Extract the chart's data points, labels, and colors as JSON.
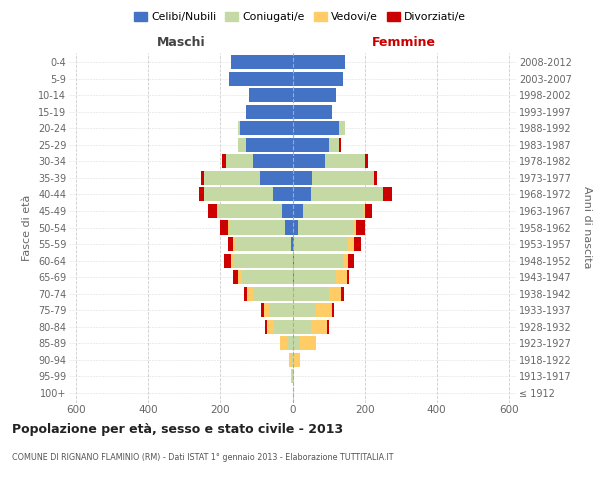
{
  "age_groups": [
    "100+",
    "95-99",
    "90-94",
    "85-89",
    "80-84",
    "75-79",
    "70-74",
    "65-69",
    "60-64",
    "55-59",
    "50-54",
    "45-49",
    "40-44",
    "35-39",
    "30-34",
    "25-29",
    "20-24",
    "15-19",
    "10-14",
    "5-9",
    "0-4"
  ],
  "birth_years": [
    "≤ 1912",
    "1913-1917",
    "1918-1922",
    "1923-1927",
    "1928-1932",
    "1933-1937",
    "1938-1942",
    "1943-1947",
    "1948-1952",
    "1953-1957",
    "1958-1962",
    "1963-1967",
    "1968-1972",
    "1973-1977",
    "1978-1982",
    "1983-1987",
    "1988-1992",
    "1993-1997",
    "1998-2002",
    "2003-2007",
    "2008-2012"
  ],
  "colors": {
    "celibi": "#4472C4",
    "coniugati": "#C5D9A4",
    "vedovi": "#FFCC66",
    "divorziati": "#CC0000"
  },
  "males": {
    "celibi": [
      0,
      0,
      0,
      0,
      0,
      0,
      0,
      0,
      0,
      5,
      20,
      30,
      55,
      90,
      110,
      130,
      145,
      130,
      120,
      175,
      170
    ],
    "coniugati": [
      0,
      2,
      5,
      15,
      50,
      65,
      110,
      140,
      165,
      155,
      155,
      180,
      190,
      155,
      75,
      20,
      5,
      0,
      0,
      0,
      0
    ],
    "vedovi": [
      0,
      2,
      5,
      20,
      20,
      15,
      15,
      10,
      5,
      5,
      5,
      0,
      0,
      0,
      0,
      0,
      0,
      0,
      0,
      0,
      0
    ],
    "divorziati": [
      0,
      0,
      0,
      0,
      5,
      8,
      10,
      15,
      20,
      15,
      20,
      25,
      15,
      10,
      10,
      0,
      0,
      0,
      0,
      0,
      0
    ]
  },
  "females": {
    "nubili": [
      0,
      0,
      0,
      0,
      0,
      0,
      0,
      5,
      5,
      5,
      15,
      30,
      50,
      55,
      90,
      100,
      130,
      110,
      120,
      140,
      145
    ],
    "coniugati": [
      0,
      2,
      5,
      20,
      50,
      65,
      100,
      115,
      135,
      150,
      155,
      165,
      200,
      170,
      110,
      30,
      15,
      0,
      0,
      0,
      0
    ],
    "vedovi": [
      1,
      3,
      15,
      45,
      45,
      45,
      35,
      30,
      15,
      15,
      5,
      5,
      0,
      0,
      0,
      0,
      0,
      0,
      0,
      0,
      0
    ],
    "divorziati": [
      0,
      0,
      0,
      0,
      5,
      5,
      8,
      8,
      15,
      20,
      25,
      20,
      25,
      10,
      10,
      5,
      0,
      0,
      0,
      0,
      0
    ]
  },
  "xlim": [
    -620,
    620
  ],
  "xticks": [
    -600,
    -400,
    -200,
    0,
    200,
    400,
    600
  ],
  "xticklabels": [
    "600",
    "400",
    "200",
    "0",
    "200",
    "400",
    "600"
  ],
  "title_main": "Popolazione per età, sesso e stato civile - 2013",
  "title_sub": "COMUNE DI RIGNANO FLAMINIO (RM) - Dati ISTAT 1° gennaio 2013 - Elaborazione TUTTITALIA.IT",
  "ylabel_left": "Fasce di età",
  "ylabel_right": "Anni di nascita",
  "label_maschi": "Maschi",
  "label_femmine": "Femmine",
  "legend_labels": [
    "Celibi/Nubili",
    "Coniugati/e",
    "Vedovi/e",
    "Divorziati/e"
  ],
  "bg_color": "#FFFFFF",
  "grid_color": "#CCCCCC"
}
